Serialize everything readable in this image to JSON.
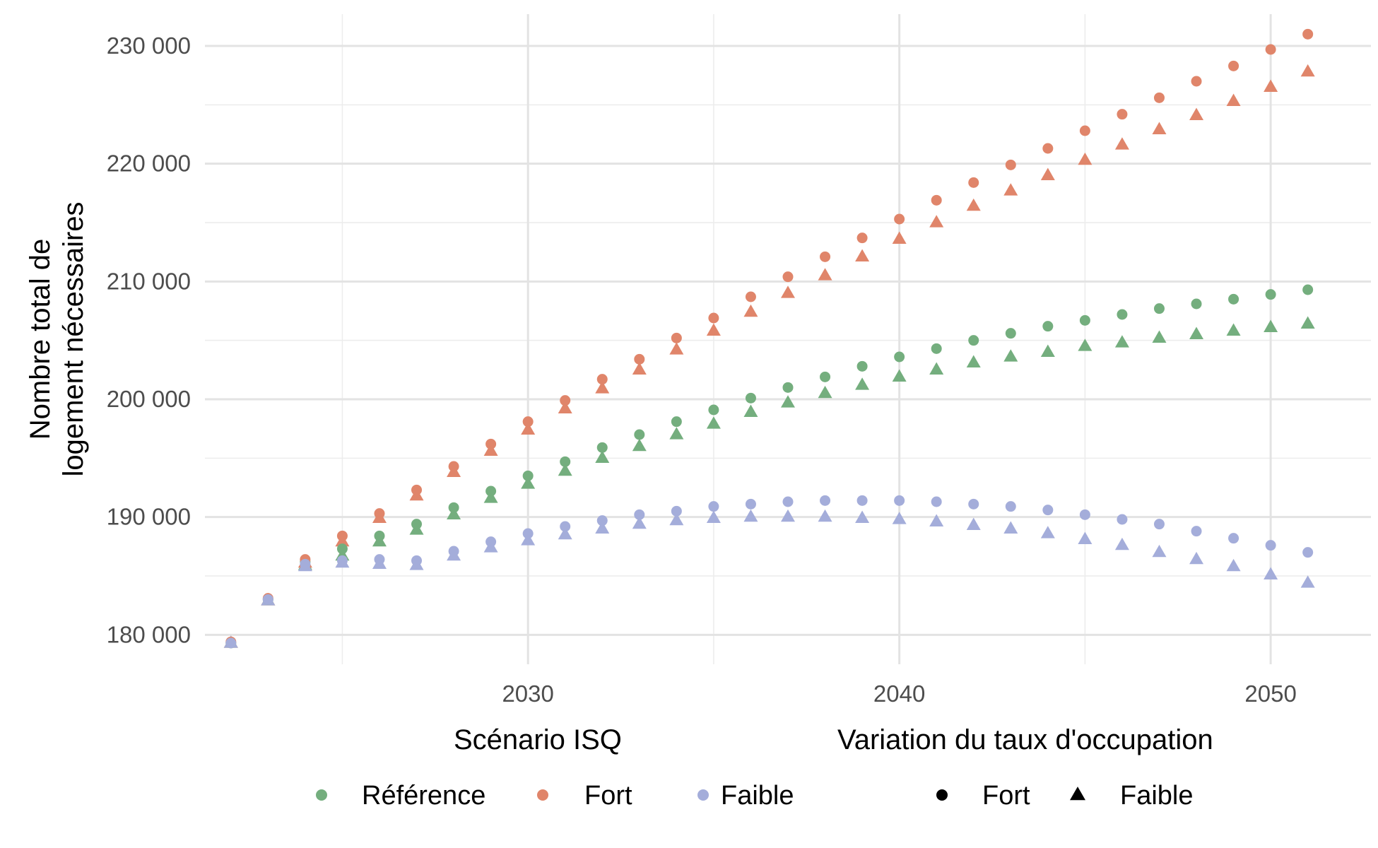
{
  "chart_data": {
    "type": "scatter",
    "xlabel": "",
    "ylabel": "Nombre total de\nlogement nécessaires",
    "x_ticks": [
      "2030",
      "2040",
      "2050"
    ],
    "y_ticks": [
      "180 000",
      "190 000",
      "200 000",
      "210 000",
      "220 000",
      "230 000"
    ],
    "xlim": [
      2021.3,
      2052.7
    ],
    "ylim": [
      177500,
      232700
    ],
    "grid": true,
    "legend_position": "bottom",
    "colors": {
      "Référence": "#74ae7e",
      "Fort": "#e0856a",
      "Faible": "#a4adda"
    },
    "legend": {
      "color_title": "Scénario ISQ",
      "color_entries": [
        "Référence",
        "Fort",
        "Faible"
      ],
      "shape_title": "Variation du taux d'occupation",
      "shape_entries": [
        {
          "label": "Fort",
          "shape": "circle"
        },
        {
          "label": "Faible",
          "shape": "triangle"
        }
      ]
    },
    "x": [
      2022,
      2023,
      2024,
      2025,
      2026,
      2027,
      2028,
      2029,
      2030,
      2031,
      2032,
      2033,
      2034,
      2035,
      2036,
      2037,
      2038,
      2039,
      2040,
      2041,
      2042,
      2043,
      2044,
      2045,
      2046,
      2047,
      2048,
      2049,
      2050,
      2051
    ],
    "series": [
      {
        "scenario": "Référence",
        "occupation": "Fort",
        "shape": "circle",
        "values": [
          179300,
          183000,
          186200,
          187300,
          188400,
          189400,
          190800,
          192200,
          193500,
          194700,
          195900,
          197000,
          198100,
          199100,
          200100,
          201000,
          201900,
          202800,
          203600,
          204300,
          205000,
          205600,
          206200,
          206700,
          207200,
          207700,
          208100,
          208500,
          208900,
          209300
        ]
      },
      {
        "scenario": "Référence",
        "occupation": "Faible",
        "shape": "triangle",
        "values": [
          179300,
          182900,
          185900,
          186700,
          187900,
          188900,
          190200,
          191600,
          192800,
          193900,
          195000,
          196000,
          197000,
          197900,
          198900,
          199700,
          200500,
          201200,
          201900,
          202500,
          203100,
          203600,
          204000,
          204500,
          204800,
          205200,
          205500,
          205800,
          206100,
          206400
        ]
      },
      {
        "scenario": "Fort",
        "occupation": "Fort",
        "shape": "circle",
        "values": [
          179400,
          183100,
          186400,
          188400,
          190300,
          192300,
          194300,
          196200,
          198100,
          199900,
          201700,
          203400,
          205200,
          206900,
          208700,
          210400,
          212100,
          213700,
          215300,
          216900,
          218400,
          219900,
          221300,
          222800,
          224200,
          225600,
          227000,
          228300,
          229700,
          231000
        ]
      },
      {
        "scenario": "Fort",
        "occupation": "Faible",
        "shape": "triangle",
        "values": [
          179300,
          182900,
          186100,
          187900,
          189900,
          191800,
          193800,
          195600,
          197400,
          199200,
          200900,
          202500,
          204200,
          205800,
          207400,
          209000,
          210500,
          212100,
          213600,
          215000,
          216400,
          217700,
          219000,
          220300,
          221600,
          222900,
          224100,
          225300,
          226500,
          227800
        ]
      },
      {
        "scenario": "Faible",
        "occupation": "Fort",
        "shape": "circle",
        "values": [
          179300,
          183000,
          186000,
          186300,
          186400,
          186300,
          187100,
          187900,
          188600,
          189200,
          189700,
          190200,
          190500,
          190900,
          191100,
          191300,
          191400,
          191400,
          191400,
          191300,
          191100,
          190900,
          190600,
          190200,
          189800,
          189400,
          188800,
          188200,
          187600,
          187000
        ]
      },
      {
        "scenario": "Faible",
        "occupation": "Faible",
        "shape": "triangle",
        "values": [
          179300,
          182900,
          185800,
          186100,
          186000,
          185900,
          186700,
          187400,
          188000,
          188500,
          189000,
          189400,
          189700,
          189900,
          190000,
          190000,
          190000,
          189900,
          189800,
          189600,
          189300,
          189000,
          188600,
          188100,
          187600,
          187000,
          186400,
          185800,
          185100,
          184400
        ]
      }
    ]
  }
}
